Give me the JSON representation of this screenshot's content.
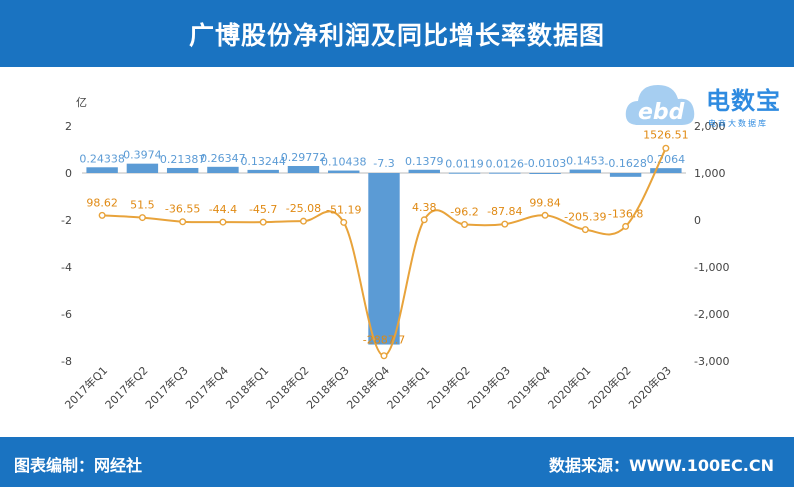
{
  "header": {
    "title": "广博股份净利润及同比增长率数据图"
  },
  "footer": {
    "left": "图表编制：网经社",
    "right": "数据来源：WWW.100EC.CN"
  },
  "logo": {
    "brand": "电数宝",
    "tagline": "电商大数据库",
    "icon": "cloud-ebd-logo"
  },
  "colors": {
    "header_bg": "#1a73c1",
    "bar": "#5b9bd5",
    "line": "#e8a33b",
    "bar_label": "#5b9bd5",
    "line_label": "#e08a14"
  },
  "chart_data": {
    "type": "bar+line",
    "categories": [
      "2017年Q1",
      "2017年Q2",
      "2017年Q3",
      "2017年Q4",
      "2018年Q1",
      "2018年Q2",
      "2018年Q3",
      "2018年Q4",
      "2019年Q1",
      "2019年Q2",
      "2019年Q3",
      "2019年Q4",
      "2020年Q1",
      "2020年Q2",
      "2020年Q3"
    ],
    "left_axis": {
      "unit": "亿",
      "ticks": [
        2,
        0,
        -2,
        -4,
        -6,
        -8
      ],
      "min": -8,
      "max": 2
    },
    "right_axis": {
      "ticks": [
        "2,000",
        "1,000",
        "0",
        "-1,000",
        "-2,000",
        "-3,000"
      ],
      "min": -3000,
      "max": 2000
    },
    "series": [
      {
        "kind": "bar",
        "axis": "left",
        "values": [
          0.24338,
          0.3974,
          0.21387,
          0.26347,
          0.13244,
          0.29772,
          0.10438,
          -7.3,
          0.1379,
          0.0119,
          0.0126,
          -0.0103,
          0.1453,
          -0.1628,
          0.2064
        ],
        "labels": [
          "0.24338",
          "0.3974",
          "0.21387",
          "0.26347",
          "0.13244",
          "0.29772",
          "0.10438",
          "-7.3",
          "0.1379",
          "0.0119",
          "0.0126",
          "-0.0103",
          "0.1453",
          "-0.1628",
          "0.2064"
        ]
      },
      {
        "kind": "line",
        "axis": "right",
        "values": [
          98.62,
          51.5,
          -36.55,
          -44.4,
          -45.7,
          -25.08,
          -51.19,
          -2887.7,
          4.38,
          -96.2,
          -87.84,
          99.84,
          -205.39,
          -136.8,
          1526.51
        ],
        "labels": [
          "98.62",
          "51.5",
          "-36.55",
          "-44.4",
          "-45.7",
          "-25.08",
          "-51.19",
          "-2887.7",
          "4.38",
          "-96.2",
          "-87.84",
          "99.84",
          "-205.39",
          "-136.8",
          "1526.51"
        ]
      }
    ]
  }
}
